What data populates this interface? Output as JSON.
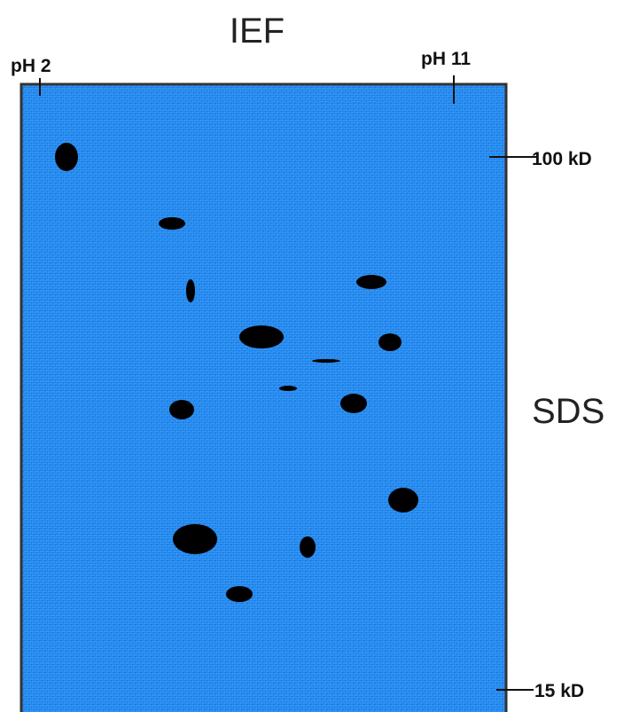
{
  "title": "IEF",
  "ph_low": "pH 2",
  "ph_high": "pH 11",
  "mw_high": "100 kD",
  "mw_low": "15 kD",
  "axis_label": "SDS"
}
